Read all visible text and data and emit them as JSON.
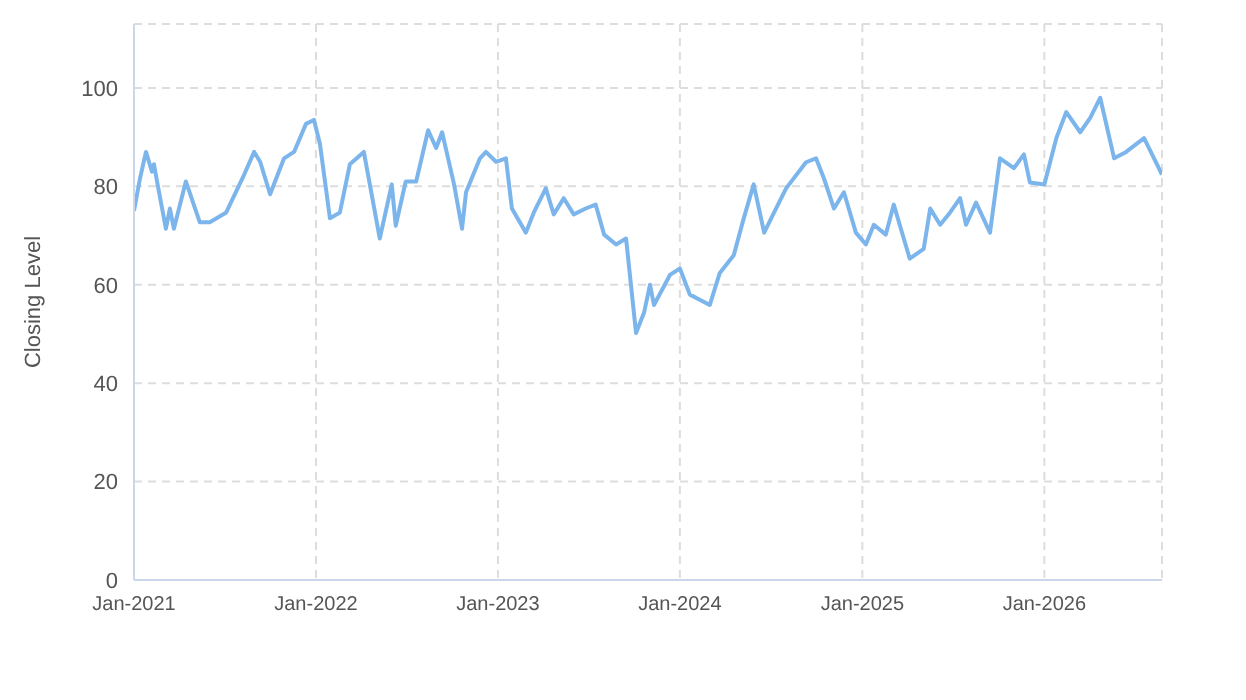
{
  "chart_data": {
    "type": "line",
    "ylabel": "Closing Level",
    "x": [
      "2021-01-01",
      "2021-01-13",
      "2021-01-25",
      "2021-02-06",
      "2021-02-10",
      "2021-02-18",
      "2021-03-06",
      "2021-03-14",
      "2021-03-22",
      "2021-04-15",
      "2021-05-13",
      "2021-06-02",
      "2021-07-05",
      "2021-08-10",
      "2021-08-30",
      "2021-09-11",
      "2021-10-01",
      "2021-10-29",
      "2021-11-18",
      "2021-12-12",
      "2021-12-28",
      "2022-01-09",
      "2022-01-29",
      "2022-02-18",
      "2022-03-10",
      "2022-04-07",
      "2022-04-19",
      "2022-05-09",
      "2022-06-02",
      "2022-06-10",
      "2022-06-30",
      "2022-07-21",
      "2022-08-14",
      "2022-08-30",
      "2022-09-11",
      "2022-10-05",
      "2022-10-21",
      "2022-10-29",
      "2022-11-26",
      "2022-12-08",
      "2022-12-28",
      "2023-01-17",
      "2023-01-29",
      "2023-02-26",
      "2023-03-14",
      "2023-04-07",
      "2023-04-23",
      "2023-05-13",
      "2023-06-02",
      "2023-06-26",
      "2023-07-16",
      "2023-08-02",
      "2023-08-26",
      "2023-09-15",
      "2023-10-05",
      "2023-10-21",
      "2023-11-02",
      "2023-11-10",
      "2023-12-12",
      "2024-01-01",
      "2024-01-21",
      "2024-03-01",
      "2024-03-21",
      "2024-04-18",
      "2024-05-08",
      "2024-05-28",
      "2024-06-18",
      "2024-07-08",
      "2024-08-01",
      "2024-09-10",
      "2024-09-30",
      "2024-10-16",
      "2024-11-05",
      "2024-11-25",
      "2024-12-19",
      "2025-01-08",
      "2025-01-24",
      "2025-02-17",
      "2025-03-05",
      "2025-03-25",
      "2025-04-06",
      "2025-05-04",
      "2025-05-17",
      "2025-06-06",
      "2025-06-26",
      "2025-07-16",
      "2025-07-28",
      "2025-08-17",
      "2025-09-14",
      "2025-10-04",
      "2025-11-01",
      "2025-11-21",
      "2025-12-03",
      "2026-01-01",
      "2026-01-25",
      "2026-02-14",
      "2026-03-14",
      "2026-04-03",
      "2026-04-23",
      "2026-05-21",
      "2026-06-14",
      "2026-07-20",
      "2026-08-09",
      "2026-08-25"
    ],
    "series": [
      {
        "color": "#7cb5ec",
        "values": [
          75,
          81.6,
          87,
          83,
          84.5,
          80,
          71.4,
          75.5,
          71.4,
          81,
          72.7,
          72.7,
          74.7,
          82.4,
          87,
          85,
          78.4,
          85.7,
          87,
          92.7,
          93.5,
          88.6,
          73.5,
          74.7,
          84.5,
          87,
          80.4,
          69.4,
          80.4,
          72,
          81,
          81,
          91.4,
          87.8,
          91,
          80.4,
          71.4,
          78.8,
          85.7,
          87,
          85,
          85.7,
          75.5,
          70.6,
          74.7,
          79.6,
          74.3,
          77.6,
          74.3,
          75.5,
          76.3,
          70.2,
          68.2,
          69.4,
          50.2,
          54.3,
          60,
          55.9,
          62,
          63.3,
          58,
          55.9,
          62.4,
          66,
          73.5,
          80.4,
          70.6,
          74.7,
          79.6,
          84.9,
          85.7,
          81.6,
          75.5,
          78.8,
          70.6,
          68.2,
          72.2,
          70.2,
          76.3,
          69.4,
          65.3,
          67.3,
          75.5,
          72.2,
          74.7,
          77.6,
          72.2,
          76.7,
          70.6,
          85.7,
          83.7,
          86.5,
          80.8,
          80.4,
          89.8,
          95.1,
          91,
          93.9,
          98,
          85.7,
          87,
          89.8,
          85.7,
          82.4
        ]
      }
    ],
    "xlim": [
      "2021-01-01",
      "2026-08-25"
    ],
    "xticks": [
      {
        "value": "2021-01-01",
        "label": "Jan-2021"
      },
      {
        "value": "2022-01-01",
        "label": "Jan-2022"
      },
      {
        "value": "2023-01-01",
        "label": "Jan-2023"
      },
      {
        "value": "2024-01-01",
        "label": "Jan-2024"
      },
      {
        "value": "2025-01-01",
        "label": "Jan-2025"
      },
      {
        "value": "2026-01-01",
        "label": "Jan-2026"
      }
    ],
    "ylim": [
      0,
      113
    ],
    "yticks": [
      0,
      20,
      40,
      60,
      80,
      100
    ],
    "grid": true,
    "marker": "none",
    "line_style": "solid"
  }
}
